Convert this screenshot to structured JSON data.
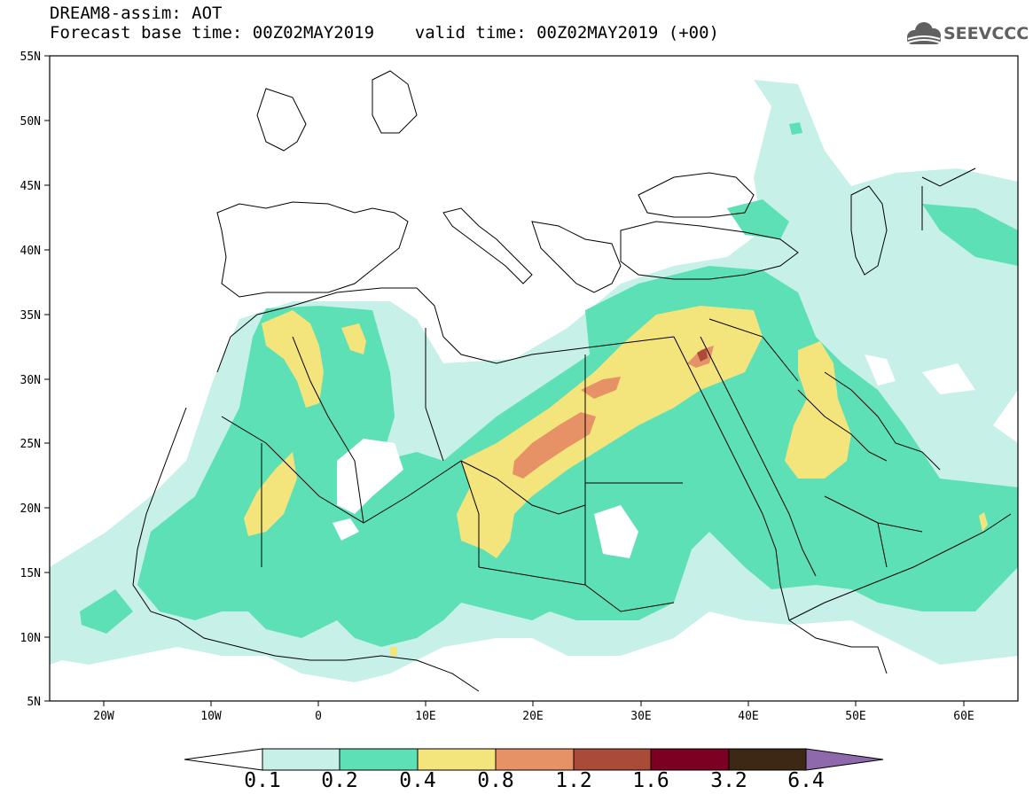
{
  "header": {
    "title": "DREAM8-assim: AOT",
    "subtitle": "Forecast base time: 00Z02MAY2019    valid time: 00Z02MAY2019 (+00)",
    "logo_text": "SEEVCCC"
  },
  "map": {
    "variable": "AOT",
    "model": "DREAM8-assim",
    "extent": {
      "lon": [
        -25,
        65
      ],
      "lat": [
        5,
        55
      ]
    },
    "lat_ticks": [
      "55N",
      "50N",
      "45N",
      "40N",
      "35N",
      "30N",
      "25N",
      "20N",
      "15N",
      "10N",
      "5N"
    ],
    "lon_ticks": [
      "20W",
      "10W",
      "0",
      "10E",
      "20E",
      "30E",
      "40E",
      "50E",
      "60E"
    ]
  },
  "colorbar": {
    "levels": [
      "0.1",
      "0.2",
      "0.4",
      "0.8",
      "1.2",
      "1.6",
      "3.2",
      "6.4"
    ],
    "colors": [
      "#c6f0e8",
      "#5de0b6",
      "#f4e47c",
      "#e69266",
      "#aa4b3a",
      "#7c0022",
      "#3c2815",
      "#8e6aac"
    ]
  }
}
